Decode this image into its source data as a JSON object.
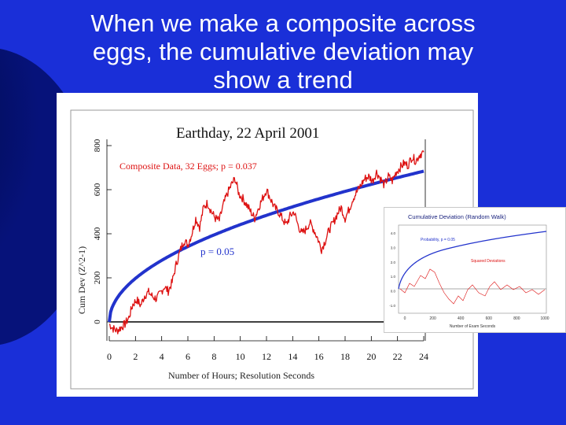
{
  "slide": {
    "title_lines": [
      "When we make a composite across",
      "eggs, the cumulative deviation may",
      "show a trend"
    ],
    "background_color": "#1a2fd8"
  },
  "chart_data": [
    {
      "type": "line",
      "title": "Earthday, 22 April 2001",
      "xlabel": "Number of Hours; Resolution Seconds",
      "ylabel": "Cum Dev (Z^2-1)",
      "xlim": [
        0,
        24
      ],
      "ylim": [
        0,
        800
      ],
      "xticks": [
        "0",
        "2",
        "4",
        "6",
        "8",
        "10",
        "12",
        "14",
        "16",
        "18",
        "20",
        "22",
        "24"
      ],
      "yticks": [
        "0",
        "200",
        "400",
        "600",
        "800"
      ],
      "series": [
        {
          "name": "Composite Data, 32 Eggs; p = 0.037",
          "color": "#dd1111",
          "x": [
            0,
            0.3,
            0.6,
            0.9,
            1.2,
            1.5,
            1.8,
            2.1,
            2.4,
            2.7,
            3.0,
            3.3,
            3.6,
            3.9,
            4.2,
            4.5,
            4.8,
            5.1,
            5.4,
            5.7,
            6.0,
            6.3,
            6.6,
            6.9,
            7.2,
            7.5,
            7.8,
            8.1,
            8.4,
            8.7,
            9.0,
            9.3,
            9.6,
            9.9,
            10.2,
            10.5,
            10.8,
            11.1,
            11.4,
            11.7,
            12.0,
            12.3,
            12.6,
            12.9,
            13.2,
            13.5,
            13.8,
            14.1,
            14.4,
            14.7,
            15.0,
            15.3,
            15.6,
            15.9,
            16.2,
            16.5,
            16.8,
            17.1,
            17.4,
            17.7,
            18.0,
            18.3,
            18.6,
            18.9,
            19.2,
            19.5,
            19.8,
            20.1,
            20.4,
            20.7,
            21.0,
            21.3,
            21.6,
            21.9,
            22.2,
            22.5,
            22.8,
            23.1,
            23.4,
            23.7,
            24.0
          ],
          "y": [
            -10,
            -30,
            -40,
            -25,
            -10,
            20,
            80,
            100,
            75,
            120,
            135,
            115,
            105,
            130,
            160,
            140,
            180,
            260,
            320,
            370,
            350,
            400,
            470,
            430,
            520,
            540,
            500,
            470,
            460,
            530,
            580,
            620,
            650,
            580,
            560,
            530,
            500,
            470,
            520,
            560,
            600,
            560,
            520,
            500,
            470,
            440,
            480,
            500,
            440,
            400,
            420,
            450,
            420,
            380,
            330,
            370,
            420,
            450,
            490,
            520,
            470,
            510,
            560,
            590,
            620,
            650,
            660,
            640,
            680,
            650,
            620,
            660,
            640,
            680,
            700,
            720,
            710,
            750,
            730,
            760,
            770
          ]
        },
        {
          "name": "p = 0.05",
          "color": "#2233cc",
          "function": "1.645*sqrt(2*N)"
        }
      ],
      "annotations": [
        {
          "text": "Composite Data, 32 Eggs; p = 0.037",
          "color": "#dd1111"
        },
        {
          "text": "p = 0.05",
          "color": "#2233cc"
        }
      ],
      "grid": false
    },
    {
      "type": "line",
      "title": "Cumulative Deviation (Random Walk)",
      "xlabel": "Number of Exam Seconds",
      "xticks": [
        "0",
        "200",
        "400",
        "600",
        "800",
        "1000"
      ],
      "yticks": [
        "4.0",
        "3.0",
        "2.0",
        "1.0",
        "0.0",
        "-1.0"
      ],
      "series": [
        {
          "name": "Probability, p = 0.05",
          "color": "#2233cc"
        },
        {
          "name": "Squared Deviations",
          "color": "#dd1111"
        }
      ]
    }
  ]
}
